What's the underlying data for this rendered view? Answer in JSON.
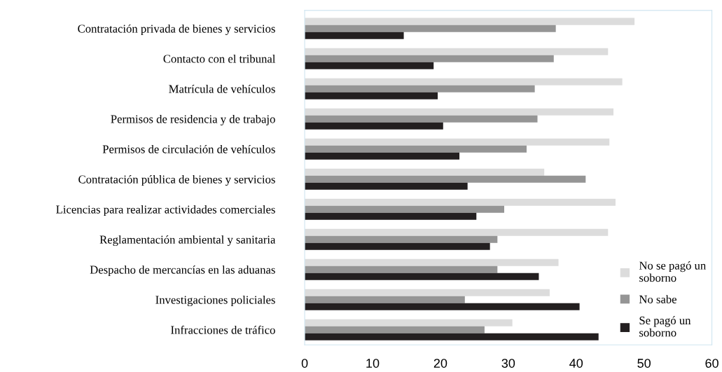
{
  "chart_data": {
    "type": "bar",
    "orientation": "horizontal",
    "categories": [
      "Contratación privada de bienes y servicios",
      "Contacto con el tribunal",
      "Matrícula de vehículos",
      "Permisos de residencia y de trabajo",
      "Permisos de circulación de vehículos",
      "Contratación pública de bienes y servicios",
      "Licencias para realizar actividades comerciales",
      "Reglamentación ambiental y sanitaria",
      "Despacho de mercancías en las aduanas",
      "Investigaciones policiales",
      "Infracciones de tráfico"
    ],
    "series": [
      {
        "name": "No se pagó un\nsoborno",
        "color": "#dcdcdc",
        "values": [
          48.6,
          44.7,
          46.8,
          45.5,
          44.9,
          35.3,
          45.8,
          44.7,
          37.4,
          36.1,
          30.6
        ]
      },
      {
        "name": "No sabe",
        "color": "#959595",
        "values": [
          37.0,
          36.7,
          33.9,
          34.3,
          32.7,
          41.4,
          29.4,
          28.4,
          28.4,
          23.6,
          26.5
        ]
      },
      {
        "name": "Se pagó un\nsoborno",
        "color": "#231f20",
        "values": [
          14.6,
          19.0,
          19.6,
          20.4,
          22.8,
          24.0,
          25.3,
          27.3,
          34.5,
          40.5,
          43.3
        ]
      }
    ],
    "xlim": [
      0,
      60
    ],
    "xticks": [
      0,
      10,
      20,
      30,
      40,
      50,
      60
    ],
    "grid": false,
    "legend": "bottom right"
  }
}
